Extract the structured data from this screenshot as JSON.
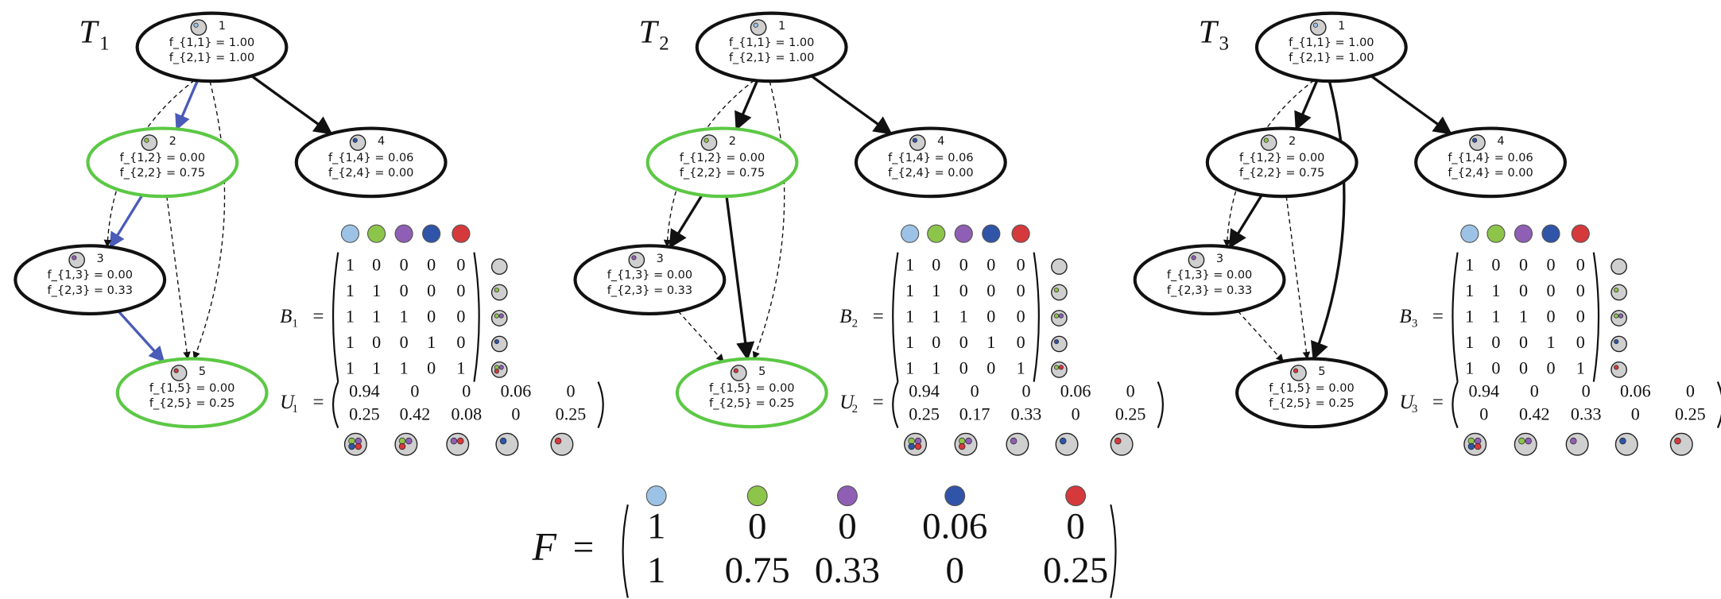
{
  "equals": "=",
  "trees": [
    {
      "name": {
        "letter": "T",
        "sub": "1"
      },
      "nodes": [
        {
          "id": "1",
          "f": [
            "f_{1,1} = 1.00",
            "f_{2,1} = 1.00"
          ]
        },
        {
          "id": "2",
          "f": [
            "f_{1,2} = 0.00",
            "f_{2,2} = 0.75"
          ]
        },
        {
          "id": "3",
          "f": [
            "f_{1,3} = 0.00",
            "f_{2,3} = 0.33"
          ]
        },
        {
          "id": "4",
          "f": [
            "f_{1,4} = 0.06",
            "f_{2,4} = 0.00"
          ]
        },
        {
          "id": "5",
          "f": [
            "f_{1,5} = 0.00",
            "f_{2,5} = 0.25"
          ]
        }
      ],
      "B": {
        "letter": "B",
        "sub": "1",
        "rows": [
          [
            1,
            0,
            0,
            0,
            0
          ],
          [
            1,
            1,
            0,
            0,
            0
          ],
          [
            1,
            1,
            1,
            0,
            0
          ],
          [
            1,
            0,
            0,
            1,
            0
          ],
          [
            1,
            1,
            1,
            0,
            1
          ]
        ]
      },
      "U": {
        "letter": "U",
        "sub": "1",
        "rows": [
          [
            0.94,
            0,
            0,
            0.06,
            0
          ],
          [
            0.25,
            0.42,
            0.08,
            0,
            0.25
          ]
        ]
      }
    },
    {
      "name": {
        "letter": "T",
        "sub": "2"
      },
      "nodes": [
        {
          "id": "1",
          "f": [
            "f_{1,1} = 1.00",
            "f_{2,1} = 1.00"
          ]
        },
        {
          "id": "2",
          "f": [
            "f_{1,2} = 0.00",
            "f_{2,2} = 0.75"
          ]
        },
        {
          "id": "3",
          "f": [
            "f_{1,3} = 0.00",
            "f_{2,3} = 0.33"
          ]
        },
        {
          "id": "4",
          "f": [
            "f_{1,4} = 0.06",
            "f_{2,4} = 0.00"
          ]
        },
        {
          "id": "5",
          "f": [
            "f_{1,5} = 0.00",
            "f_{2,5} = 0.25"
          ]
        }
      ],
      "B": {
        "letter": "B",
        "sub": "2",
        "rows": [
          [
            1,
            0,
            0,
            0,
            0
          ],
          [
            1,
            1,
            0,
            0,
            0
          ],
          [
            1,
            1,
            1,
            0,
            0
          ],
          [
            1,
            0,
            0,
            1,
            0
          ],
          [
            1,
            1,
            0,
            0,
            1
          ]
        ]
      },
      "U": {
        "letter": "U",
        "sub": "2",
        "rows": [
          [
            0.94,
            0,
            0,
            0.06,
            0
          ],
          [
            0.25,
            0.17,
            0.33,
            0,
            0.25
          ]
        ]
      }
    },
    {
      "name": {
        "letter": "T",
        "sub": "3"
      },
      "nodes": [
        {
          "id": "1",
          "f": [
            "f_{1,1} = 1.00",
            "f_{2,1} = 1.00"
          ]
        },
        {
          "id": "2",
          "f": [
            "f_{1,2} = 0.00",
            "f_{2,2} = 0.75"
          ]
        },
        {
          "id": "3",
          "f": [
            "f_{1,3} = 0.00",
            "f_{2,3} = 0.33"
          ]
        },
        {
          "id": "4",
          "f": [
            "f_{1,4} = 0.06",
            "f_{2,4} = 0.00"
          ]
        },
        {
          "id": "5",
          "f": [
            "f_{1,5} = 0.00",
            "f_{2,5} = 0.25"
          ]
        }
      ],
      "B": {
        "letter": "B",
        "sub": "3",
        "rows": [
          [
            1,
            0,
            0,
            0,
            0
          ],
          [
            1,
            1,
            0,
            0,
            0
          ],
          [
            1,
            1,
            1,
            0,
            0
          ],
          [
            1,
            0,
            0,
            1,
            0
          ],
          [
            1,
            0,
            0,
            0,
            1
          ]
        ]
      },
      "U": {
        "letter": "U",
        "sub": "3",
        "rows": [
          [
            0.94,
            0,
            0,
            0.06,
            0
          ],
          [
            0,
            0.42,
            0.33,
            0,
            0.25
          ]
        ]
      }
    }
  ],
  "F": {
    "letter": "F",
    "rows": [
      [
        1,
        0,
        0,
        0.06,
        0
      ],
      [
        1,
        0.75,
        0.33,
        0,
        0.25
      ]
    ]
  }
}
